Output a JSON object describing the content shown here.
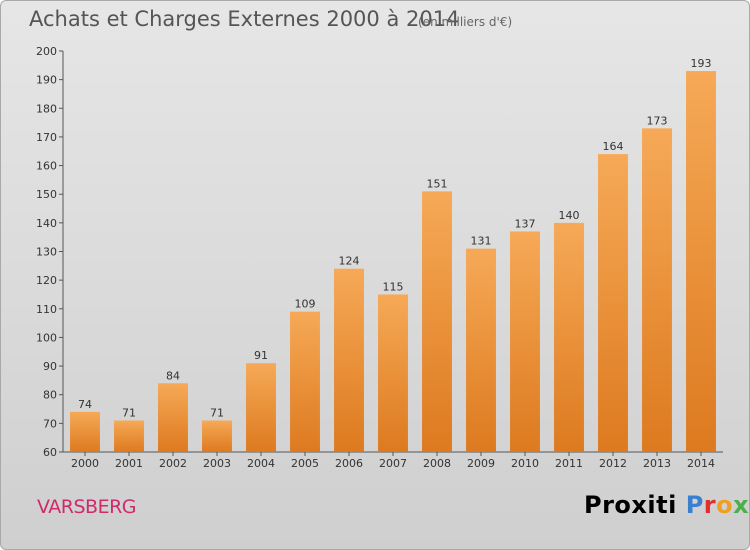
{
  "header": {
    "title": "Achats et Charges Externes 2000 à 2014",
    "subtitle": "(en milliers d'€)"
  },
  "footer": {
    "place": "VARSBERG",
    "logo": "Proxiti"
  },
  "colors": {
    "bar_light": "#f6a957",
    "bar_dark": "#dd7a1f",
    "place_text": "#d02a6b",
    "logo_letters": [
      "#3a7fd0",
      "#e0302b",
      "#f0a020",
      "#4bb04a",
      "#3a7fd0",
      "#e0302b",
      "#f0a020"
    ]
  },
  "chart_data": {
    "type": "bar",
    "title": "Achats et Charges Externes 2000 à 2014",
    "subtitle": "(en milliers d'€)",
    "categories": [
      "2000",
      "2001",
      "2002",
      "2003",
      "2004",
      "2005",
      "2006",
      "2007",
      "2008",
      "2009",
      "2010",
      "2011",
      "2012",
      "2013",
      "2014"
    ],
    "values": [
      74,
      71,
      84,
      71,
      91,
      109,
      124,
      115,
      151,
      131,
      137,
      140,
      164,
      173,
      193
    ],
    "xlabel": "",
    "ylabel": "",
    "ylim": [
      60,
      200
    ],
    "yticks": [
      60,
      70,
      80,
      90,
      100,
      110,
      120,
      130,
      140,
      150,
      160,
      170,
      180,
      190,
      200
    ],
    "grid": false,
    "data_labels": true
  }
}
